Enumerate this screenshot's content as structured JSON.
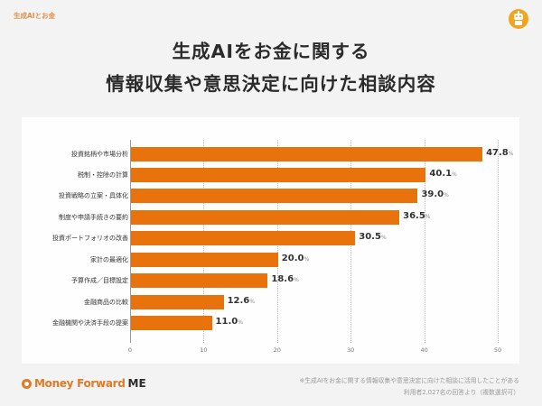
{
  "header": {
    "tag": "生成AIとお金",
    "title_line1": "生成AIをお金に関する",
    "title_line2": "情報収集や意思決定に向けた相談内容",
    "icon": "robot-icon"
  },
  "colors": {
    "bar": "#e8730c",
    "accent": "#e07a24",
    "robot": "#f0a51e",
    "background": "#f4f3f4"
  },
  "chart_data": {
    "type": "bar",
    "orientation": "horizontal",
    "title": "生成AIをお金に関する情報収集や意思決定に向けた相談内容",
    "categories": [
      "投資銘柄や市場分析",
      "税制・控除の計算",
      "投資戦略の立案・具体化",
      "制度や申請手続きの要約",
      "投資ポートフォリオの改善",
      "家計の最適化",
      "予算作成／目標設定",
      "金融商品の比較",
      "金融機関や決済手段の提案"
    ],
    "values": [
      47.8,
      40.1,
      39.0,
      36.5,
      30.5,
      20.0,
      18.6,
      12.6,
      11.0
    ],
    "value_labels": [
      "47.8",
      "40.1",
      "39.0",
      "36.5",
      "30.5",
      "20.0",
      "18.6",
      "12.6",
      "11.0"
    ],
    "unit": "%",
    "xlabel": "",
    "ylabel": "",
    "xlim": [
      0,
      50
    ],
    "xticks": [
      "0",
      "10",
      "20",
      "30",
      "40",
      "50"
    ],
    "grid": "vertical dotted"
  },
  "footer": {
    "logo_text": "Money Forward",
    "logo_suffix": "ME",
    "note_line1": "※生成AIをお金に関する情報収集や意思決定に向けた相談に活用したことがある",
    "note_line2": "利用者2,027名の回答より（複数選択可）"
  }
}
